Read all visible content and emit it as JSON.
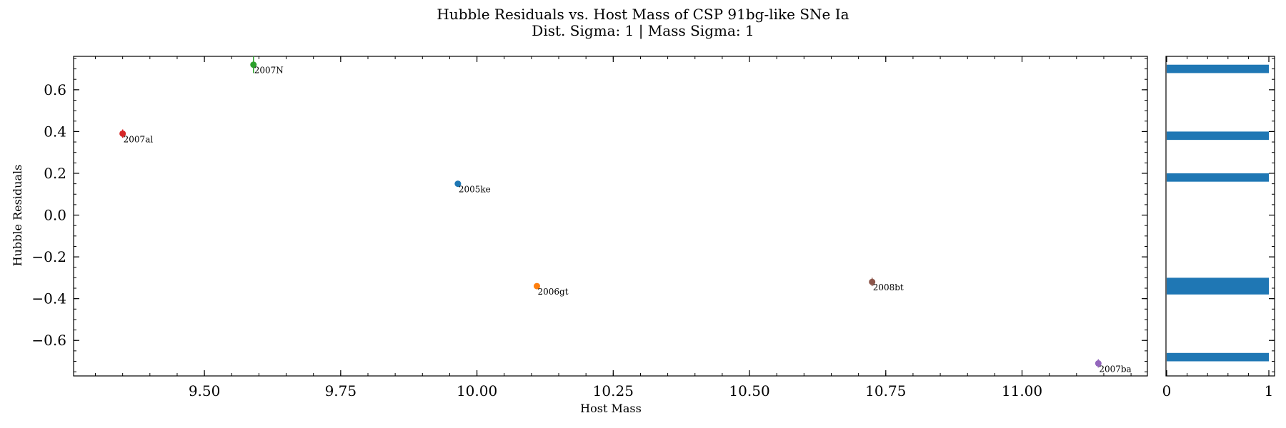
{
  "chart_data": [
    {
      "type": "scatter",
      "title": "Hubble Residuals vs. Host Mass of CSP 91bg-like SNe Ia",
      "subtitle": "Dist. Sigma: 1 | Mass Sigma: 1",
      "xlabel": "Host Mass",
      "ylabel": "Hubble Residuals",
      "xlim": [
        9.26,
        11.23
      ],
      "ylim": [
        -0.77,
        0.76
      ],
      "xticks": [
        9.5,
        9.75,
        10.0,
        10.25,
        10.5,
        10.75,
        11.0
      ],
      "xtick_labels": [
        "9.50",
        "9.75",
        "10.00",
        "10.25",
        "10.50",
        "10.75",
        "11.00"
      ],
      "yticks": [
        0.6,
        0.4,
        0.2,
        0.0,
        -0.2,
        -0.4,
        -0.6
      ],
      "ytick_labels": [
        "0.6",
        "0.4",
        "0.2",
        "0.0",
        "−0.2",
        "−0.4",
        "−0.6"
      ],
      "grid": false,
      "points": [
        {
          "label": "2007al",
          "x": 9.35,
          "y": 0.39,
          "yerr": 0.02,
          "color": "#d62728"
        },
        {
          "label": "2007N",
          "x": 9.59,
          "y": 0.72,
          "yerr": 0.04,
          "color": "#2ca02c"
        },
        {
          "label": "2005ke",
          "x": 9.965,
          "y": 0.15,
          "yerr": 0.01,
          "color": "#1f77b4"
        },
        {
          "label": "2006gt",
          "x": 10.11,
          "y": -0.34,
          "yerr": 0.01,
          "color": "#ff7f0e"
        },
        {
          "label": "2008bt",
          "x": 10.725,
          "y": -0.32,
          "yerr": 0.02,
          "color": "#8c564b"
        },
        {
          "label": "2007ba",
          "x": 11.14,
          "y": -0.71,
          "yerr": 0.02,
          "color": "#9467bd"
        }
      ]
    },
    {
      "type": "bar",
      "orientation": "horizontal",
      "xlim": [
        0,
        1
      ],
      "xticks": [
        0,
        1
      ],
      "xtick_labels": [
        "0",
        "1"
      ],
      "bar_color": "#1f77b4",
      "bars": [
        {
          "y_low": 0.68,
          "y_high": 0.72,
          "value": 1
        },
        {
          "y_low": 0.36,
          "y_high": 0.4,
          "value": 1
        },
        {
          "y_low": 0.16,
          "y_high": 0.2,
          "value": 1
        },
        {
          "y_low": -0.38,
          "y_high": -0.3,
          "value": 1
        },
        {
          "y_low": -0.7,
          "y_high": -0.66,
          "value": 1
        }
      ]
    }
  ]
}
